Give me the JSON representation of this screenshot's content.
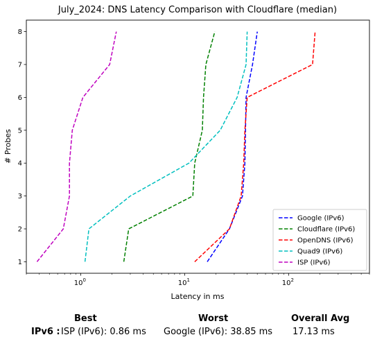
{
  "chart_data": {
    "type": "line",
    "title": "July_2024: DNS Latency Comparison with Cloudflare (median)",
    "xlabel": "Latency in ms",
    "ylabel": "# Probes",
    "xscale": "log",
    "xlim": [
      0.3,
      600
    ],
    "ylim": [
      0.65,
      8.35
    ],
    "x_ticks": [
      {
        "value": 1,
        "label": "10",
        "exp": "0"
      },
      {
        "value": 10,
        "label": "10",
        "exp": "1"
      },
      {
        "value": 100,
        "label": "10",
        "exp": "2"
      }
    ],
    "y_ticks": [
      1,
      2,
      3,
      4,
      5,
      6,
      7,
      8
    ],
    "legend_position": "bottom-right",
    "grid": false,
    "series": [
      {
        "name": "Google (IPv6)",
        "color": "#0000ff",
        "points": [
          [
            16.5,
            1
          ],
          [
            27,
            2
          ],
          [
            36,
            3
          ],
          [
            38,
            4
          ],
          [
            38.5,
            5
          ],
          [
            39,
            6
          ],
          [
            45,
            7
          ],
          [
            50,
            8
          ]
        ]
      },
      {
        "name": "Cloudflare (IPv6)",
        "color": "#008000",
        "points": [
          [
            2.6,
            1
          ],
          [
            2.9,
            2
          ],
          [
            12,
            3
          ],
          [
            12.5,
            4
          ],
          [
            14.8,
            5
          ],
          [
            15.2,
            6
          ],
          [
            16,
            7
          ],
          [
            19.5,
            8
          ]
        ]
      },
      {
        "name": "OpenDNS (IPv6)",
        "color": "#ff0000",
        "points": [
          [
            12.5,
            1
          ],
          [
            27,
            2
          ],
          [
            35,
            3
          ],
          [
            37,
            4
          ],
          [
            38,
            5
          ],
          [
            40,
            6
          ],
          [
            170,
            7
          ],
          [
            180,
            8
          ]
        ]
      },
      {
        "name": "Quad9 (IPv6)",
        "color": "#00bfbf",
        "points": [
          [
            1.1,
            1
          ],
          [
            1.2,
            2
          ],
          [
            3,
            3
          ],
          [
            11,
            4
          ],
          [
            22,
            5
          ],
          [
            32,
            6
          ],
          [
            39,
            7
          ],
          [
            40,
            8
          ]
        ]
      },
      {
        "name": "ISP (IPv6)",
        "color": "#bf00bf",
        "points": [
          [
            0.38,
            1
          ],
          [
            0.68,
            2
          ],
          [
            0.78,
            3
          ],
          [
            0.78,
            4
          ],
          [
            0.83,
            5
          ],
          [
            1.05,
            6
          ],
          [
            1.9,
            7
          ],
          [
            2.2,
            8
          ]
        ]
      }
    ]
  },
  "summary": {
    "best_header": "Best",
    "worst_header": "Worst",
    "avg_header": "Overall Avg",
    "row_label": "IPv6 :",
    "best_value": "ISP (IPv6): 0.86 ms",
    "worst_value": "Google (IPv6): 38.85 ms",
    "avg_value": "17.13 ms"
  }
}
